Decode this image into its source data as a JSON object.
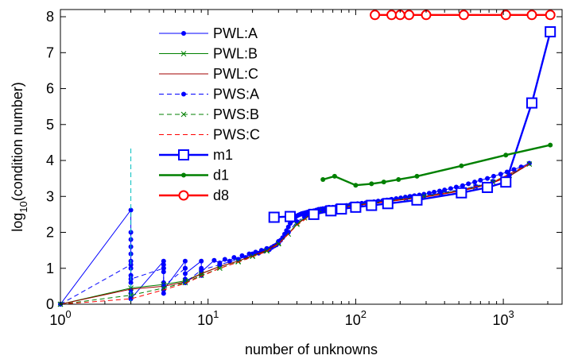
{
  "chart_data": {
    "type": "line",
    "title": "",
    "xlabel": "number of unknowns",
    "ylabel_parts": {
      "main": "log",
      "sub": "10",
      "tail": "(condition number)"
    },
    "x_scale": "log",
    "xlim": [
      1,
      2500
    ],
    "ylim": [
      0,
      8.2
    ],
    "x_ticks": [
      {
        "value": 1,
        "base": "10",
        "exp": "0"
      },
      {
        "value": 10,
        "base": "10",
        "exp": "1"
      },
      {
        "value": 100,
        "base": "10",
        "exp": "2"
      },
      {
        "value": 1000,
        "base": "10",
        "exp": "3"
      }
    ],
    "y_ticks": [
      0,
      1,
      2,
      3,
      4,
      5,
      6,
      7,
      8
    ],
    "grid": false,
    "legend_position": "upper-left inside",
    "series": [
      {
        "name": "PWL:A",
        "color": "#0000ff",
        "dash": "solid",
        "width": 1,
        "marker": "dot",
        "x": [
          1,
          3,
          3,
          3,
          3,
          3,
          3,
          3,
          3,
          3,
          3,
          3,
          3,
          5,
          5,
          5,
          5,
          5,
          5,
          5,
          5,
          7,
          7,
          7,
          7,
          7,
          9,
          9,
          9,
          9,
          11,
          12,
          13,
          14,
          15,
          16,
          17,
          18,
          19,
          20,
          21,
          22,
          23,
          24,
          25,
          26,
          27,
          28,
          29,
          30,
          31,
          32,
          33,
          34,
          35,
          36,
          37,
          38,
          39,
          40,
          41,
          42,
          43,
          44,
          45,
          46,
          47,
          48,
          49,
          50,
          52,
          54,
          56,
          58,
          60,
          63,
          66,
          70,
          74,
          78,
          82,
          87,
          92,
          97,
          103,
          110,
          117,
          125,
          133,
          142,
          152,
          163,
          175,
          188,
          202,
          217,
          233,
          250,
          270,
          290,
          315,
          340,
          370,
          400,
          440,
          480,
          530,
          580,
          640,
          700,
          780,
          860,
          960,
          1060,
          1180,
          1320,
          1500
        ],
        "y": [
          0,
          2.62,
          0.2,
          2.0,
          0.4,
          1.8,
          0.6,
          1.6,
          0.8,
          1.4,
          1.0,
          1.2,
          0.15,
          1.2,
          0.3,
          1.1,
          0.5,
          1.0,
          0.6,
          0.9,
          0.4,
          1.2,
          0.6,
          1.0,
          0.7,
          0.85,
          1.2,
          0.8,
          1.0,
          0.9,
          1.22,
          1.15,
          1.25,
          1.2,
          1.3,
          1.25,
          1.35,
          1.3,
          1.4,
          1.38,
          1.45,
          1.42,
          1.5,
          1.48,
          1.55,
          1.52,
          1.58,
          1.62,
          1.65,
          1.7,
          1.78,
          1.85,
          1.95,
          2.05,
          2.15,
          2.25,
          2.32,
          2.38,
          2.42,
          2.46,
          2.48,
          2.5,
          2.52,
          2.53,
          2.54,
          2.55,
          2.56,
          2.57,
          2.58,
          2.58,
          2.6,
          2.62,
          2.64,
          2.65,
          2.66,
          2.68,
          2.7,
          2.7,
          2.72,
          2.72,
          2.73,
          2.75,
          2.77,
          2.78,
          2.8,
          2.81,
          2.82,
          2.84,
          2.85,
          2.87,
          2.88,
          2.9,
          2.92,
          2.94,
          2.96,
          2.98,
          3.0,
          3.02,
          3.04,
          3.06,
          3.09,
          3.12,
          3.15,
          3.18,
          3.22,
          3.26,
          3.3,
          3.35,
          3.4,
          3.45,
          3.5,
          3.56,
          3.62,
          3.68,
          3.75,
          3.82,
          3.92
        ]
      },
      {
        "name": "PWL:B",
        "color": "#008000",
        "dash": "solid",
        "width": 1,
        "marker": "x",
        "x": [
          1,
          3,
          5,
          7,
          9,
          12,
          16,
          20,
          25,
          30,
          35,
          40,
          45,
          50,
          60,
          70,
          85,
          100,
          130,
          170,
          220,
          290,
          380,
          500,
          650,
          850,
          1100,
          1500
        ],
        "y": [
          0,
          0.45,
          0.55,
          0.65,
          0.85,
          1.05,
          1.2,
          1.35,
          1.5,
          1.7,
          1.95,
          2.25,
          2.4,
          2.5,
          2.6,
          2.66,
          2.72,
          2.76,
          2.82,
          2.88,
          2.94,
          3.0,
          3.08,
          3.16,
          3.26,
          3.4,
          3.58,
          3.9
        ]
      },
      {
        "name": "PWL:C",
        "color": "#a00000",
        "dash": "solid",
        "width": 1,
        "marker": "none",
        "x": [
          1,
          3,
          5,
          7,
          9,
          12,
          16,
          20,
          25,
          30,
          35,
          40,
          45,
          50,
          60,
          70,
          85,
          100,
          130,
          170,
          220,
          290,
          380,
          500,
          650,
          850,
          1100,
          1500
        ],
        "y": [
          0,
          0.42,
          0.5,
          0.62,
          0.85,
          1.05,
          1.2,
          1.35,
          1.5,
          1.7,
          1.95,
          2.22,
          2.38,
          2.48,
          2.58,
          2.64,
          2.7,
          2.75,
          2.8,
          2.86,
          2.92,
          2.98,
          3.06,
          3.14,
          3.24,
          3.38,
          3.56,
          3.9
        ]
      },
      {
        "name": "PWS:A",
        "color": "#0000ff",
        "dash": "dashed",
        "width": 1,
        "marker": "dot",
        "x": [
          1,
          3,
          3,
          3,
          5,
          5,
          7,
          7,
          9,
          12,
          16,
          20,
          25,
          30,
          35,
          40,
          45,
          50,
          60,
          70,
          85,
          100,
          130,
          170,
          220,
          290,
          380,
          500,
          650,
          850,
          1100,
          1500
        ],
        "y": [
          0,
          1.1,
          0.3,
          0.7,
          1.0,
          0.5,
          1.0,
          0.6,
          0.95,
          1.1,
          1.25,
          1.4,
          1.55,
          1.75,
          2.0,
          2.3,
          2.42,
          2.52,
          2.62,
          2.68,
          2.74,
          2.78,
          2.84,
          2.9,
          2.96,
          3.02,
          3.1,
          3.18,
          3.28,
          3.42,
          3.6,
          3.92
        ]
      },
      {
        "name": "PWS:B",
        "color": "#008000",
        "dash": "dashed",
        "width": 1,
        "marker": "x",
        "x": [
          1,
          3,
          5,
          7,
          9,
          12,
          16,
          20,
          25,
          30,
          40,
          50,
          70,
          100,
          170,
          290,
          500,
          850,
          1500
        ],
        "y": [
          0,
          0.25,
          0.45,
          0.6,
          0.8,
          1.0,
          1.18,
          1.33,
          1.48,
          1.68,
          2.22,
          2.5,
          2.66,
          2.76,
          2.88,
          3.0,
          3.16,
          3.4,
          3.9
        ]
      },
      {
        "name": "PWS:C",
        "color": "#ff0000",
        "dash": "dashed",
        "width": 1,
        "marker": "none",
        "x": [
          1,
          3,
          5,
          7,
          9,
          12,
          16,
          20,
          25,
          30,
          40,
          50,
          70,
          100,
          170,
          290,
          500,
          850,
          1500
        ],
        "y": [
          0,
          0.15,
          0.4,
          0.58,
          0.78,
          1.0,
          1.17,
          1.32,
          1.47,
          1.67,
          2.2,
          2.48,
          2.64,
          2.75,
          2.87,
          2.99,
          3.15,
          3.39,
          3.9
        ]
      },
      {
        "name": "",
        "color": "#00bfbf",
        "dash": "dashed",
        "width": 1,
        "marker": "none",
        "x": [
          3,
          3
        ],
        "y": [
          0,
          4.42
        ]
      },
      {
        "name": "m1",
        "color": "#0000ff",
        "dash": "solid",
        "width": 2.4,
        "marker": "square",
        "x": [
          28,
          36,
          52,
          68,
          80,
          100,
          128,
          165,
          260,
          520,
          780,
          1040,
          1560,
          2080
        ],
        "y": [
          2.42,
          2.44,
          2.5,
          2.6,
          2.65,
          2.7,
          2.75,
          2.8,
          2.9,
          3.1,
          3.25,
          3.4,
          5.6,
          7.58
        ]
      },
      {
        "name": "d1",
        "color": "#008000",
        "dash": "solid",
        "width": 2.4,
        "marker": "dot",
        "x": [
          60,
          72,
          100,
          128,
          155,
          195,
          260,
          520,
          1040,
          2080
        ],
        "y": [
          3.47,
          3.56,
          3.31,
          3.35,
          3.4,
          3.47,
          3.56,
          3.85,
          4.15,
          4.43
        ]
      },
      {
        "name": "d8",
        "color": "#ff0000",
        "dash": "solid",
        "width": 2.4,
        "marker": "circle",
        "x": [
          135,
          175,
          200,
          230,
          300,
          540,
          1040,
          1560,
          2080
        ],
        "y": [
          8.05,
          8.05,
          8.05,
          8.05,
          8.05,
          8.05,
          8.05,
          8.05,
          8.05
        ]
      }
    ]
  }
}
